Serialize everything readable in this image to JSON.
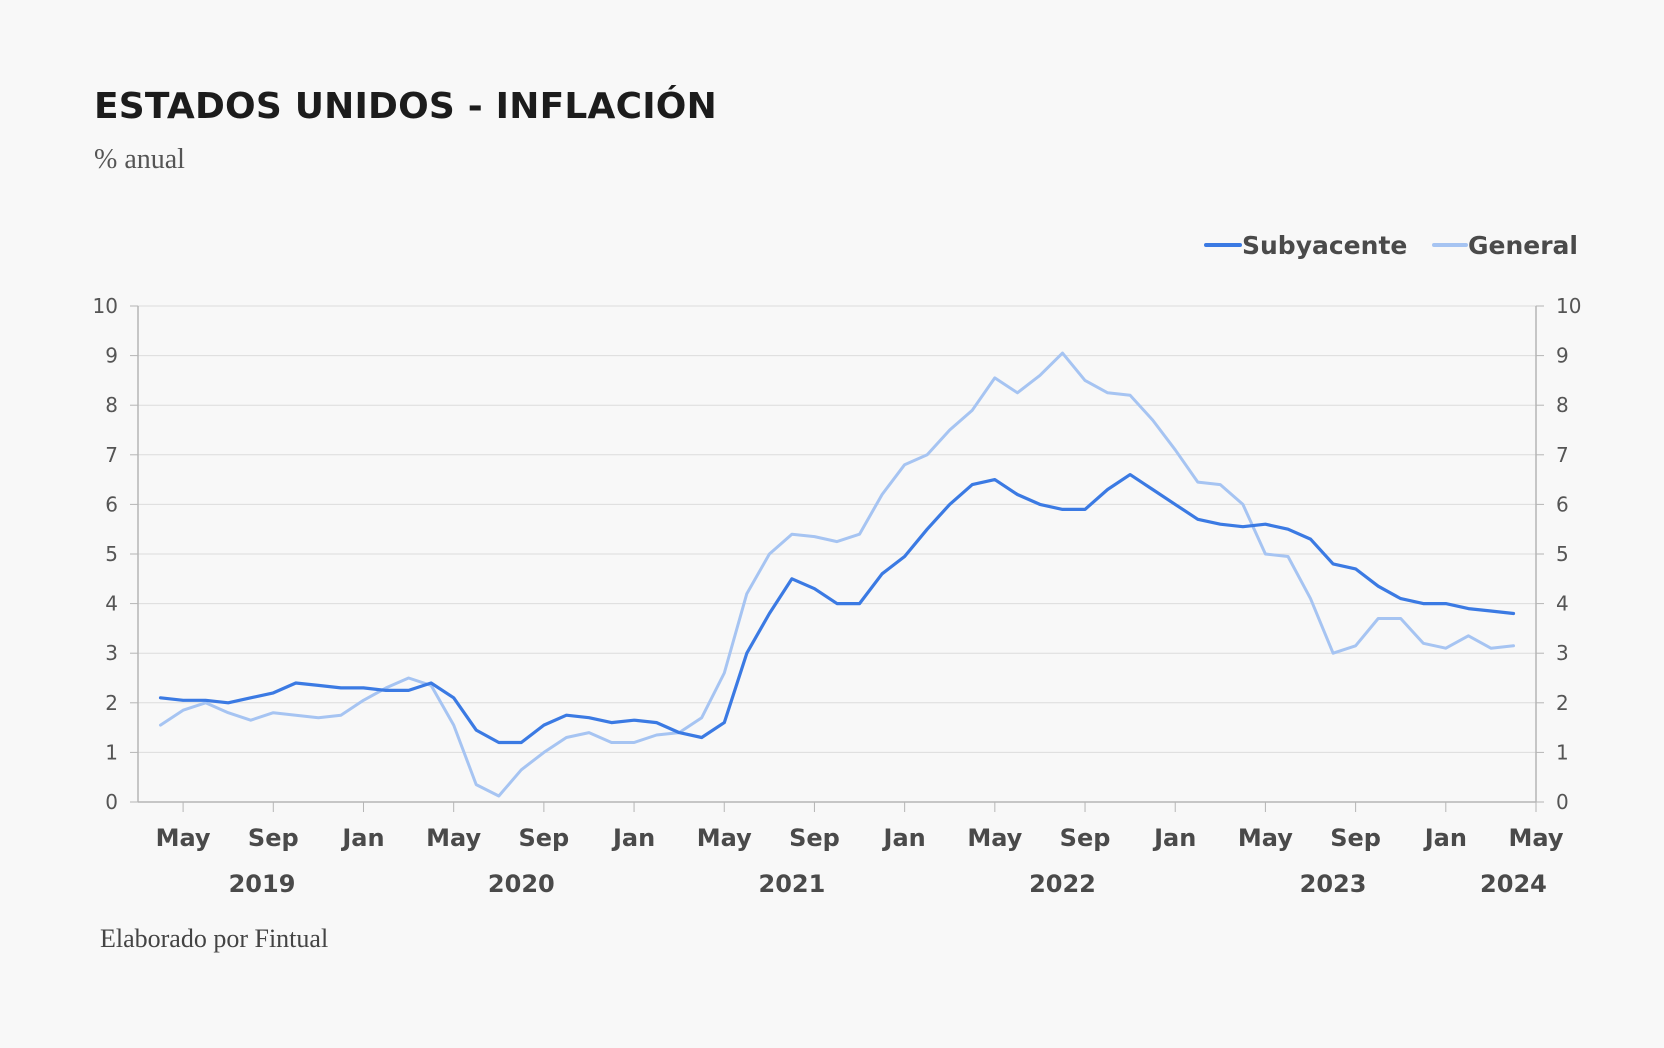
{
  "title": "ESTADOS UNIDOS - INFLACIÓN",
  "subtitle": "% anual",
  "footer": "Elaborado por Fintual",
  "colors": {
    "subyacente": "#3b7ae3",
    "general": "#a6c4f2",
    "grid": "#dcdcdc",
    "axis": "#b5b5b5"
  },
  "chart_data": {
    "type": "line",
    "title": "ESTADOS UNIDOS - INFLACIÓN",
    "ylabel": "% anual",
    "ylim": [
      0,
      10
    ],
    "y_ticks": [
      "0",
      "1",
      "2",
      "3",
      "4",
      "5",
      "6",
      "7",
      "8",
      "9",
      "10"
    ],
    "x_month_ticks": [
      {
        "label": "May",
        "index": 2
      },
      {
        "label": "Sep",
        "index": 6
      },
      {
        "label": "Jan",
        "index": 10
      },
      {
        "label": "May",
        "index": 14
      },
      {
        "label": "Sep",
        "index": 18
      },
      {
        "label": "Jan",
        "index": 22
      },
      {
        "label": "May",
        "index": 26
      },
      {
        "label": "Sep",
        "index": 30
      },
      {
        "label": "Jan",
        "index": 34
      },
      {
        "label": "May",
        "index": 38
      },
      {
        "label": "Sep",
        "index": 42
      },
      {
        "label": "Jan",
        "index": 46
      },
      {
        "label": "May",
        "index": 50
      },
      {
        "label": "Sep",
        "index": 54
      },
      {
        "label": "Jan",
        "index": 58
      },
      {
        "label": "May",
        "index": 62
      }
    ],
    "x_year_labels": [
      {
        "label": "2019",
        "index": 5.5
      },
      {
        "label": "2020",
        "index": 17.0
      },
      {
        "label": "2021",
        "index": 29.0
      },
      {
        "label": "2022",
        "index": 41.0
      },
      {
        "label": "2023",
        "index": 53.0
      },
      {
        "label": "2024",
        "index": 61.0
      }
    ],
    "x_range": [
      0,
      62
    ],
    "series": [
      {
        "name": "Subyacente",
        "color": "#3b7ae3",
        "start_index": 1,
        "values": [
          2.1,
          2.05,
          2.05,
          2.0,
          2.1,
          2.2,
          2.4,
          2.35,
          2.3,
          2.3,
          2.25,
          2.25,
          2.4,
          2.1,
          1.45,
          1.2,
          1.2,
          1.55,
          1.75,
          1.7,
          1.6,
          1.65,
          1.6,
          1.4,
          1.3,
          1.6,
          3.0,
          3.8,
          4.5,
          4.3,
          4.0,
          4.0,
          4.6,
          4.95,
          5.5,
          6.0,
          6.4,
          6.5,
          6.2,
          6.0,
          5.9,
          5.9,
          6.3,
          6.6,
          6.3,
          6.0,
          5.7,
          5.6,
          5.55,
          5.6,
          5.5,
          5.3,
          4.8,
          4.7,
          4.35,
          4.1,
          4.0,
          4.0,
          3.9,
          3.85,
          3.8
        ]
      },
      {
        "name": "General",
        "color": "#a6c4f2",
        "start_index": 1,
        "values": [
          1.55,
          1.85,
          2.0,
          1.8,
          1.65,
          1.8,
          1.75,
          1.7,
          1.75,
          2.05,
          2.3,
          2.5,
          2.35,
          1.55,
          0.35,
          0.12,
          0.65,
          1.0,
          1.3,
          1.4,
          1.2,
          1.2,
          1.35,
          1.4,
          1.7,
          2.6,
          4.2,
          5.0,
          5.4,
          5.35,
          5.25,
          5.4,
          6.2,
          6.8,
          7.0,
          7.5,
          7.9,
          8.55,
          8.25,
          8.6,
          9.05,
          8.5,
          8.25,
          8.2,
          7.7,
          7.1,
          6.45,
          6.4,
          6.0,
          5.0,
          4.95,
          4.1,
          3.0,
          3.15,
          3.7,
          3.7,
          3.2,
          3.1,
          3.35,
          3.1,
          3.15
        ]
      }
    ],
    "legend": [
      {
        "label": "Subyacente",
        "color": "#3b7ae3"
      },
      {
        "label": "General",
        "color": "#a6c4f2"
      }
    ],
    "legend_position": "top-right",
    "grid": true
  }
}
